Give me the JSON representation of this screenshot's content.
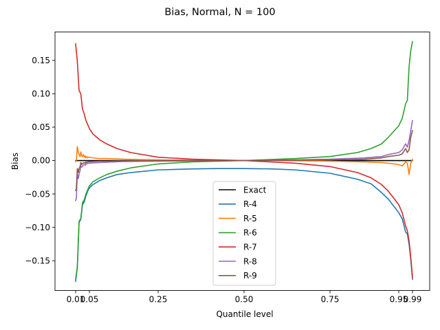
{
  "chart_data": {
    "type": "line",
    "title": "Bias, Normal, N = 100",
    "xlabel": "Quantile level",
    "ylabel": "Bias",
    "x_ticks": [
      {
        "x": 0.01,
        "label": "0.01"
      },
      {
        "x": 0.05,
        "label": "0.05"
      },
      {
        "x": 0.25,
        "label": "0.25"
      },
      {
        "x": 0.5,
        "label": "0.50"
      },
      {
        "x": 0.75,
        "label": "0.75"
      },
      {
        "x": 0.95,
        "label": "0.95"
      },
      {
        "x": 0.99,
        "label": "0.99"
      }
    ],
    "y_ticks": [
      {
        "y": 0.15,
        "label": "0.15"
      },
      {
        "y": 0.1,
        "label": "0.10"
      },
      {
        "y": 0.05,
        "label": "0.05"
      },
      {
        "y": 0.0,
        "label": "0.00"
      },
      {
        "y": -0.05,
        "label": "−0.05"
      },
      {
        "y": -0.1,
        "label": "−0.10"
      },
      {
        "y": -0.15,
        "label": "−0.15"
      }
    ],
    "ylim": [
      -0.1945,
      0.1925
    ],
    "grid": false,
    "legend_position": "lower-center",
    "series": [
      {
        "name": "Exact",
        "color": "#000000",
        "x": [
          0.01,
          0.99
        ],
        "y": [
          0.0,
          0.0
        ]
      },
      {
        "name": "R-4",
        "color": "#1f77b4",
        "x": [
          0.01,
          0.015,
          0.02,
          0.025,
          0.03,
          0.035,
          0.04,
          0.045,
          0.05,
          0.06,
          0.08,
          0.1,
          0.13,
          0.17,
          0.25,
          0.35,
          0.42,
          0.5,
          0.58,
          0.65,
          0.75,
          0.83,
          0.87,
          0.9,
          0.92,
          0.95,
          0.96,
          0.97,
          0.975,
          0.98,
          0.985,
          0.99
        ],
        "y": [
          -0.181,
          -0.16,
          -0.093,
          -0.088,
          -0.066,
          -0.062,
          -0.053,
          -0.046,
          -0.041,
          -0.036,
          -0.03,
          -0.026,
          -0.021,
          -0.018,
          -0.014,
          -0.0125,
          -0.012,
          -0.012,
          -0.0125,
          -0.014,
          -0.019,
          -0.028,
          -0.035,
          -0.048,
          -0.058,
          -0.078,
          -0.087,
          -0.107,
          -0.11,
          -0.125,
          -0.148,
          -0.178
        ]
      },
      {
        "name": "R-5",
        "color": "#ff7f0e",
        "x": [
          0.01,
          0.012,
          0.015,
          0.018,
          0.02,
          0.023,
          0.025,
          0.028,
          0.03,
          0.033,
          0.035,
          0.038,
          0.04,
          0.043,
          0.045,
          0.048,
          0.05,
          0.06,
          0.08,
          0.1,
          0.15,
          0.25,
          0.35,
          0.5,
          0.65,
          0.75,
          0.85,
          0.9,
          0.92,
          0.95,
          0.96,
          0.97,
          0.975,
          0.98,
          0.985,
          0.99
        ],
        "y": [
          -0.002,
          0.0,
          0.021,
          0.012,
          0.009,
          0.006,
          0.013,
          0.007,
          0.006,
          0.009,
          0.005,
          0.007,
          0.004,
          0.006,
          0.004,
          0.005,
          0.005,
          0.004,
          0.003,
          0.003,
          0.002,
          0.001,
          0.0005,
          0.0,
          -0.0005,
          -0.001,
          -0.002,
          -0.003,
          -0.004,
          -0.006,
          -0.008,
          -0.002,
          -0.004,
          -0.021,
          -0.004,
          0.002
        ]
      },
      {
        "name": "R-6",
        "color": "#2ca02c",
        "x": [
          0.01,
          0.015,
          0.02,
          0.025,
          0.03,
          0.035,
          0.04,
          0.045,
          0.05,
          0.06,
          0.08,
          0.1,
          0.13,
          0.17,
          0.25,
          0.35,
          0.5,
          0.65,
          0.75,
          0.83,
          0.87,
          0.9,
          0.92,
          0.95,
          0.96,
          0.97,
          0.975,
          0.98,
          0.985,
          0.99
        ],
        "y": [
          -0.178,
          -0.158,
          -0.091,
          -0.087,
          -0.063,
          -0.059,
          -0.05,
          -0.044,
          -0.038,
          -0.032,
          -0.026,
          -0.021,
          -0.016,
          -0.011,
          -0.005,
          -0.002,
          0.0,
          0.003,
          0.006,
          0.012,
          0.018,
          0.025,
          0.035,
          0.052,
          0.063,
          0.085,
          0.09,
          0.14,
          0.165,
          0.178
        ]
      },
      {
        "name": "R-7",
        "color": "#d62728",
        "x": [
          0.01,
          0.015,
          0.02,
          0.025,
          0.03,
          0.035,
          0.04,
          0.045,
          0.05,
          0.06,
          0.08,
          0.1,
          0.13,
          0.17,
          0.25,
          0.35,
          0.5,
          0.65,
          0.75,
          0.83,
          0.87,
          0.9,
          0.92,
          0.95,
          0.96,
          0.97,
          0.975,
          0.98,
          0.985,
          0.99
        ],
        "y": [
          0.175,
          0.148,
          0.105,
          0.1,
          0.077,
          0.07,
          0.06,
          0.054,
          0.048,
          0.04,
          0.031,
          0.025,
          0.018,
          0.012,
          0.005,
          0.002,
          0.0,
          -0.004,
          -0.009,
          -0.018,
          -0.026,
          -0.036,
          -0.046,
          -0.066,
          -0.078,
          -0.098,
          -0.105,
          -0.12,
          -0.145,
          -0.175
        ]
      },
      {
        "name": "R-8",
        "color": "#9467bd",
        "x": [
          0.01,
          0.012,
          0.015,
          0.018,
          0.02,
          0.023,
          0.025,
          0.028,
          0.03,
          0.033,
          0.035,
          0.038,
          0.04,
          0.043,
          0.045,
          0.048,
          0.05,
          0.06,
          0.08,
          0.1,
          0.15,
          0.25,
          0.35,
          0.5,
          0.65,
          0.75,
          0.85,
          0.9,
          0.92,
          0.95,
          0.96,
          0.97,
          0.975,
          0.98,
          0.985,
          0.99
        ],
        "y": [
          -0.06,
          -0.057,
          -0.02,
          -0.027,
          -0.02,
          -0.015,
          -0.008,
          -0.01,
          -0.008,
          -0.007,
          -0.006,
          -0.007,
          -0.005,
          -0.005,
          -0.004,
          -0.004,
          -0.004,
          -0.0035,
          -0.003,
          -0.0025,
          -0.0015,
          -0.001,
          -0.0005,
          0.0,
          0.001,
          0.002,
          0.004,
          0.006,
          0.009,
          0.012,
          0.016,
          0.025,
          0.02,
          0.03,
          0.045,
          0.06
        ]
      },
      {
        "name": "R-9",
        "color": "#8c564b",
        "x": [
          0.01,
          0.012,
          0.015,
          0.018,
          0.02,
          0.023,
          0.025,
          0.028,
          0.03,
          0.033,
          0.035,
          0.038,
          0.04,
          0.043,
          0.045,
          0.048,
          0.05,
          0.06,
          0.08,
          0.1,
          0.15,
          0.25,
          0.35,
          0.5,
          0.65,
          0.75,
          0.85,
          0.9,
          0.92,
          0.95,
          0.96,
          0.97,
          0.975,
          0.98,
          0.985,
          0.99
        ],
        "y": [
          -0.045,
          -0.042,
          -0.012,
          -0.018,
          -0.012,
          -0.009,
          -0.003,
          -0.006,
          -0.004,
          -0.004,
          -0.003,
          -0.004,
          -0.002,
          -0.003,
          -0.002,
          -0.002,
          -0.002,
          -0.0015,
          -0.001,
          -0.001,
          -0.0005,
          0.0,
          0.0,
          0.0,
          0.0005,
          0.001,
          0.002,
          0.004,
          0.006,
          0.008,
          0.01,
          0.018,
          0.012,
          0.016,
          0.035,
          0.045
        ]
      }
    ]
  }
}
